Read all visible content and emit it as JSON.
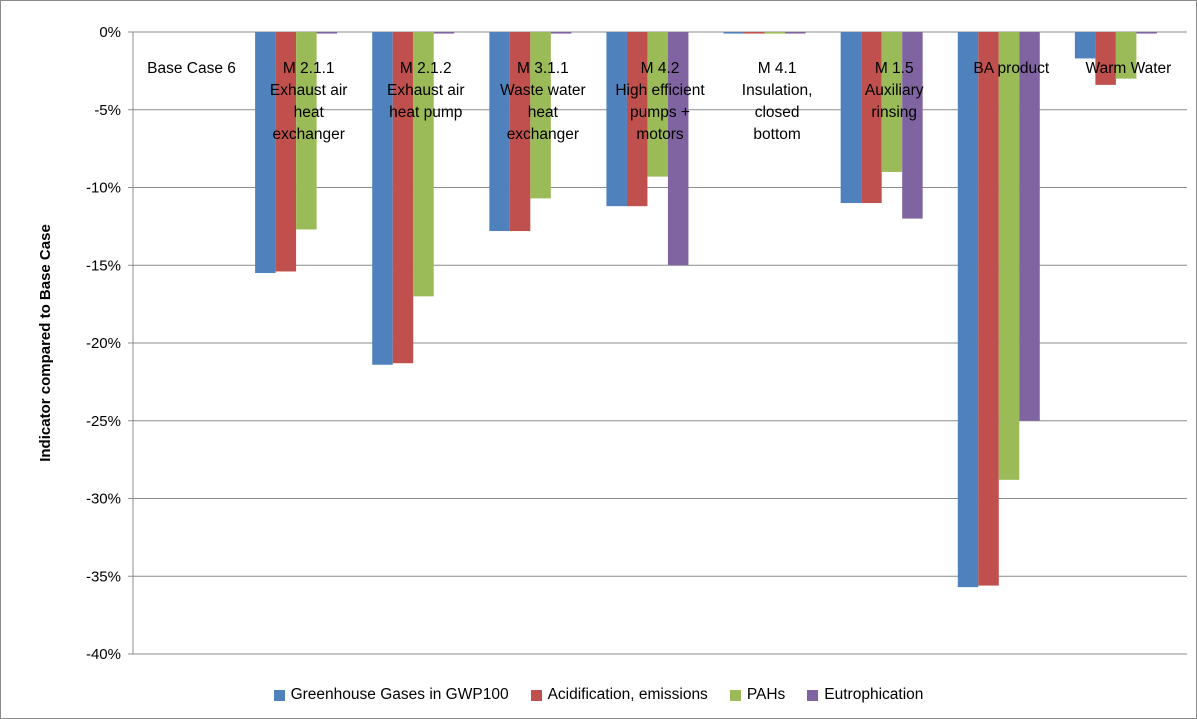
{
  "chart_data": {
    "type": "bar",
    "title": "",
    "xlabel": "",
    "ylabel": "Indicator compared to Base Case",
    "ylim": [
      -0.4,
      0.0
    ],
    "yticks": [
      "0%",
      "-5%",
      "-10%",
      "-15%",
      "-20%",
      "-25%",
      "-30%",
      "-35%",
      "-40%"
    ],
    "grid": true,
    "legend_position": "bottom",
    "categories": [
      [
        "Base Case  6"
      ],
      [
        "M 2.1.1",
        "Exhaust air",
        "heat",
        "exchanger"
      ],
      [
        "M 2.1.2",
        "Exhaust air",
        "heat pump"
      ],
      [
        "M 3.1.1",
        "Waste water",
        "heat",
        "exchanger"
      ],
      [
        "M 4.2",
        "High efficient",
        "pumps +",
        "motors"
      ],
      [
        "M 4.1",
        "Insulation,",
        "closed",
        "bottom"
      ],
      [
        "M 1.5",
        "Auxiliary",
        "rinsing"
      ],
      [
        "BA product"
      ],
      [
        "Warm Water"
      ]
    ],
    "series": [
      {
        "name": "Greenhouse Gases in GWP100",
        "color": "#4f81bd",
        "values": [
          0,
          -0.155,
          -0.214,
          -0.128,
          -0.112,
          -0.001,
          -0.11,
          -0.357,
          -0.017
        ]
      },
      {
        "name": "Acidification, emissions",
        "color": "#c0504d",
        "values": [
          0,
          -0.154,
          -0.213,
          -0.128,
          -0.112,
          -0.001,
          -0.11,
          -0.356,
          -0.034
        ]
      },
      {
        "name": "PAHs",
        "color": "#9bbb59",
        "values": [
          0,
          -0.127,
          -0.17,
          -0.107,
          -0.093,
          -0.001,
          -0.09,
          -0.288,
          -0.03
        ]
      },
      {
        "name": "Eutrophication",
        "color": "#8064a2",
        "values": [
          0,
          -0.001,
          -0.001,
          -0.001,
          -0.15,
          -0.001,
          -0.12,
          -0.25,
          -0.001
        ]
      }
    ]
  }
}
